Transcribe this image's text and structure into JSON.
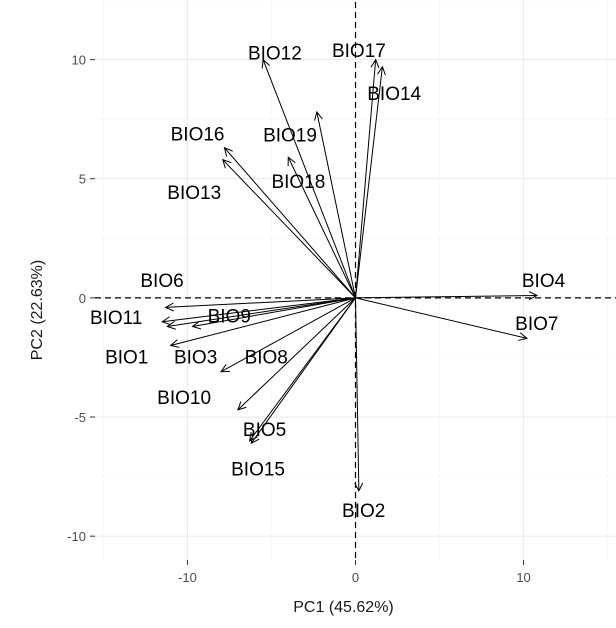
{
  "chart_data": {
    "type": "biplot",
    "xlabel": "PC1 (45.62%)",
    "ylabel": "PC2 (22.63%)",
    "xlim": [
      -15.5,
      15.5
    ],
    "ylim": [
      -11,
      12.5
    ],
    "xticks": [
      -10,
      0,
      10
    ],
    "yticks": [
      -10,
      -5,
      0,
      5,
      10
    ],
    "grid": true,
    "reference_lines": {
      "x": 0,
      "y": 0,
      "style": "dashed"
    },
    "vectors": [
      {
        "name": "BIO1",
        "x": -11.2,
        "y": -1.2,
        "label_x": -14.9,
        "label_y": -2.45
      },
      {
        "name": "BIO2",
        "x": 0.2,
        "y": -8.1,
        "label_x": -0.8,
        "label_y": -8.9
      },
      {
        "name": "BIO3",
        "x": -11.0,
        "y": -2.0,
        "label_x": -10.8,
        "label_y": -2.45
      },
      {
        "name": "BIO4",
        "x": 10.8,
        "y": 0.1,
        "label_x": 9.9,
        "label_y": 0.75
      },
      {
        "name": "BIO5",
        "x": -6.3,
        "y": -6.0,
        "label_x": -6.7,
        "label_y": -5.5
      },
      {
        "name": "BIO6",
        "x": -11.3,
        "y": -0.4,
        "label_x": -12.8,
        "label_y": 0.75
      },
      {
        "name": "BIO7",
        "x": 10.2,
        "y": -1.7,
        "label_x": 9.5,
        "label_y": -1.05
      },
      {
        "name": "BIO8",
        "x": -8.0,
        "y": -3.1,
        "label_x": -6.6,
        "label_y": -2.45
      },
      {
        "name": "BIO9",
        "x": -9.7,
        "y": -1.2,
        "label_x": -8.8,
        "label_y": -0.75
      },
      {
        "name": "BIO10",
        "x": -7.0,
        "y": -4.7,
        "label_x": -11.8,
        "label_y": -4.15
      },
      {
        "name": "BIO11",
        "x": -11.5,
        "y": -1.0,
        "label_x": -15.8,
        "label_y": -0.8
      },
      {
        "name": "BIO12",
        "x": -5.5,
        "y": 10.0,
        "label_x": -6.4,
        "label_y": 10.3
      },
      {
        "name": "BIO13",
        "x": -7.9,
        "y": 5.8,
        "label_x": -11.2,
        "label_y": 4.45
      },
      {
        "name": "BIO14",
        "x": 1.6,
        "y": 9.7,
        "label_x": 0.7,
        "label_y": 8.6
      },
      {
        "name": "BIO15",
        "x": -6.2,
        "y": -6.1,
        "label_x": -7.4,
        "label_y": -7.15
      },
      {
        "name": "BIO16",
        "x": -7.8,
        "y": 6.3,
        "label_x": -11.0,
        "label_y": 6.9
      },
      {
        "name": "BIO17",
        "x": 1.2,
        "y": 10.0,
        "label_x": -1.4,
        "label_y": 10.4
      },
      {
        "name": "BIO18",
        "x": -4.0,
        "y": 5.9,
        "label_x": -5.0,
        "label_y": 4.9
      },
      {
        "name": "BIO19",
        "x": -2.3,
        "y": 7.8,
        "label_x": -5.5,
        "label_y": 6.85
      }
    ]
  }
}
